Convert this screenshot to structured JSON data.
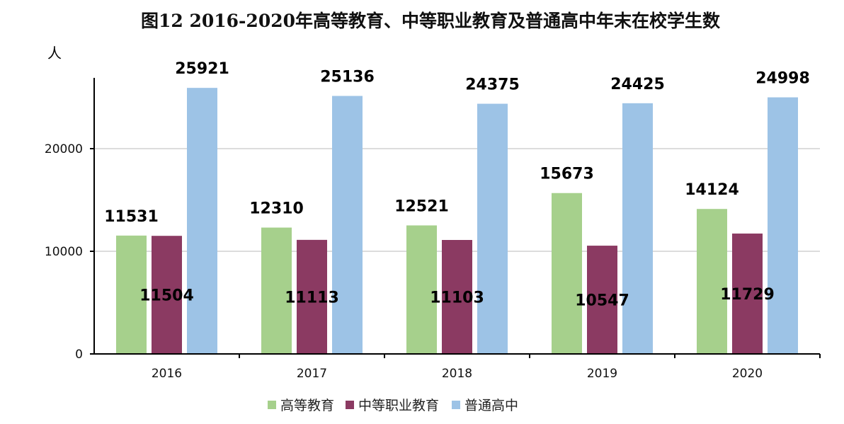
{
  "chart_data": {
    "type": "bar",
    "title": "图12  2016-2020年高等教育、中等职业教育及普通高中年末在校学生数",
    "ylabel": "人",
    "xlabel": "",
    "categories": [
      "2016",
      "2017",
      "2018",
      "2019",
      "2020"
    ],
    "series": [
      {
        "name": "高等教育",
        "color": "#a6d08c",
        "values": [
          11531,
          12310,
          12521,
          15673,
          14124
        ]
      },
      {
        "name": "中等职业教育",
        "color": "#8b3a62",
        "values": [
          11504,
          11113,
          11103,
          10547,
          11729
        ]
      },
      {
        "name": "普通高中",
        "color": "#9dc3e6",
        "values": [
          25921,
          25136,
          24375,
          24425,
          24998
        ]
      }
    ],
    "ylim": [
      0,
      26000
    ],
    "yticks": [
      0,
      10000,
      20000
    ],
    "grid": true,
    "legend": "bottom"
  }
}
